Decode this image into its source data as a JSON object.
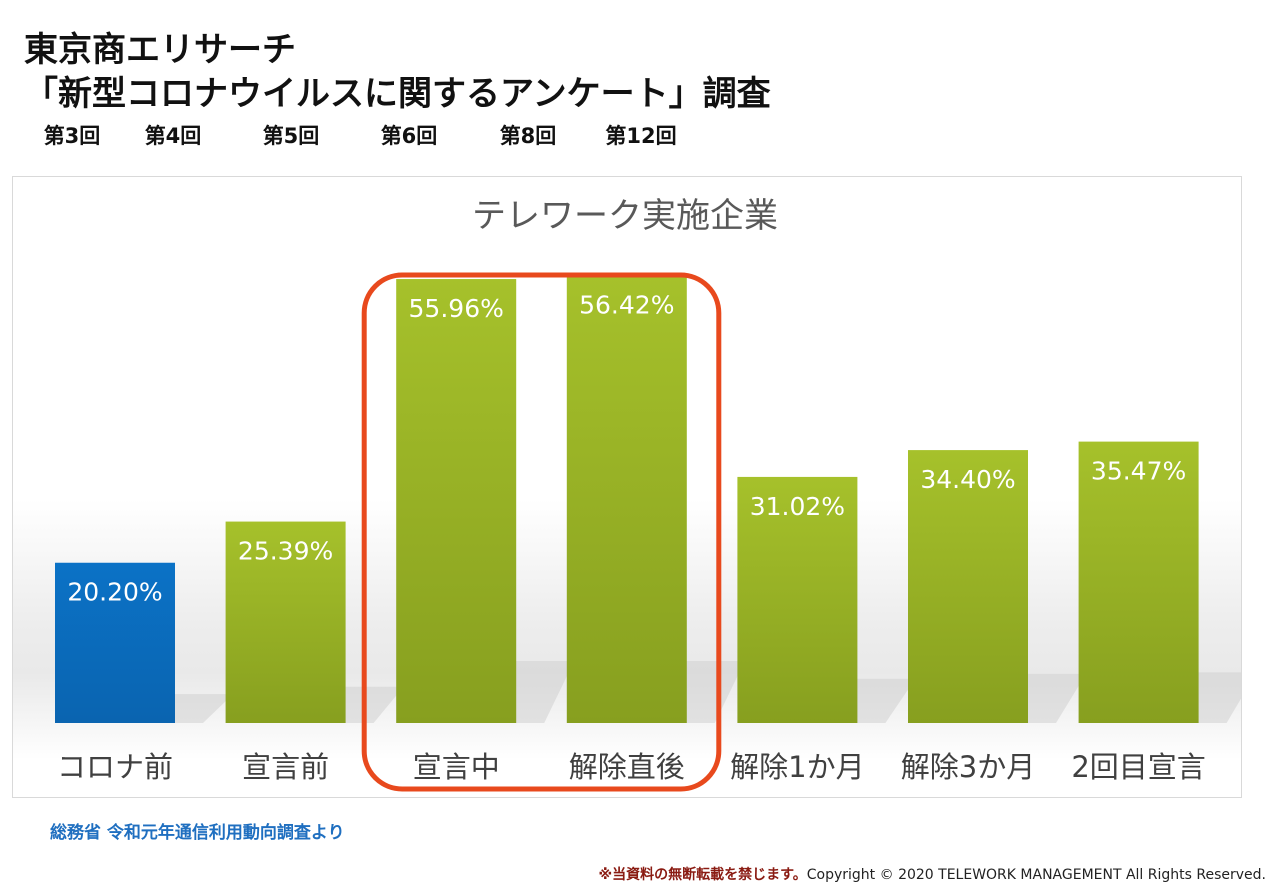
{
  "header": {
    "title_line1": "東京商エリサーチ",
    "title_line2": "「新型コロナウイルスに関するアンケート」調査",
    "rounds": [
      "第3回",
      "第4回",
      "第5回",
      "第6回",
      "第8回",
      "第12回"
    ]
  },
  "chart_data": {
    "type": "bar",
    "title": "テレワーク実施企業",
    "xlabel": "",
    "ylabel": "",
    "categories": [
      "コロナ前",
      "宣言前",
      "宣言中",
      "解除直後",
      "解除1か月",
      "解除3か月",
      "2回目宣言"
    ],
    "values": [
      20.2,
      25.39,
      55.96,
      56.42,
      31.02,
      34.4,
      35.47
    ],
    "value_labels": [
      "20.20%",
      "25.39%",
      "55.96%",
      "56.42%",
      "31.02%",
      "34.40%",
      "35.47%"
    ],
    "unit": "%",
    "ylim": [
      0,
      60
    ],
    "grid": false,
    "legend": "none",
    "bar_colors": [
      "#0b6fc2",
      "#9cb526",
      "#9cb526",
      "#9cb526",
      "#9cb526",
      "#9cb526",
      "#9cb526"
    ],
    "highlight": {
      "categories": [
        "宣言中",
        "解除直後"
      ],
      "color": "#e8491d"
    }
  },
  "footer": {
    "source": "総務省 令和元年通信利用動向調査より",
    "notice": "※当資料の無断転載を禁じます。",
    "copyright": "Copyright © 2020  TELEWORK MANAGEMENT All Rights Reserved."
  }
}
